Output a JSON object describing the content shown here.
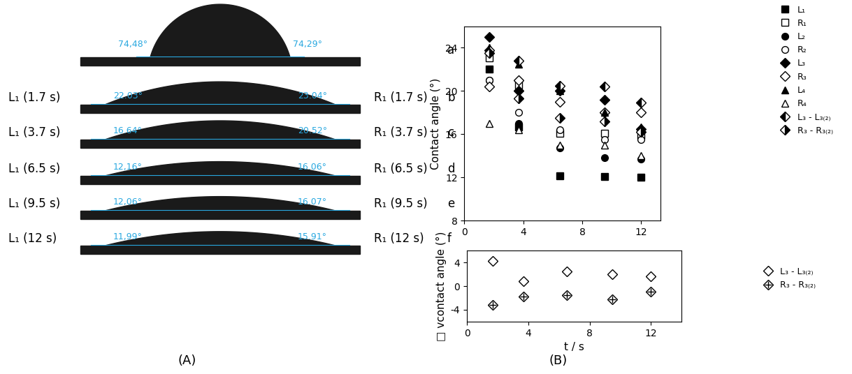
{
  "panel_labels": [
    "(A)",
    "(B)"
  ],
  "droplets": [
    {
      "row": "a",
      "left_angle": 74.48,
      "left_angle_label": "74,48°",
      "right_angle": 74.29,
      "right_angle_label": "74,29°"
    },
    {
      "row": "b",
      "left_name": "L₁ (1.7 s)",
      "right_name": "R₁ (1.7 s)",
      "left_angle": 22.03,
      "left_angle_label": "22.03°",
      "right_angle": 23.04,
      "right_angle_label": "23.04°"
    },
    {
      "row": "c",
      "left_name": "L₁ (3.7 s)",
      "right_name": "R₁ (3.7 s)",
      "left_angle": 16.64,
      "left_angle_label": "16.64°",
      "right_angle": 20.52,
      "right_angle_label": "20.52°"
    },
    {
      "row": "d",
      "left_name": "L₁ (6.5 s)",
      "right_name": "R₁ (6.5 s)",
      "left_angle": 12.16,
      "left_angle_label": "12,16°",
      "right_angle": 16.06,
      "right_angle_label": "16.06°"
    },
    {
      "row": "e",
      "left_name": "L₁ (9.5 s)",
      "right_name": "R₁ (9.5 s)",
      "left_angle": 12.06,
      "left_angle_label": "12,06°",
      "right_angle": 16.07,
      "right_angle_label": "16.07°"
    },
    {
      "row": "f",
      "left_name": "L₁ (12 s)",
      "right_name": "R₁ (12 s)",
      "left_angle": 11.99,
      "left_angle_label": "11,99°",
      "right_angle": 15.91,
      "right_angle_label": "15.91°"
    }
  ],
  "chart_data": [
    {
      "type": "scatter",
      "y_label": "Contact angle (°)",
      "x": [
        1.7,
        3.7,
        6.5,
        9.5,
        12
      ],
      "xlim": [
        0,
        13.3
      ],
      "xticks": [
        0,
        4,
        8,
        12
      ],
      "ylim": [
        8,
        26
      ],
      "yticks": [
        8,
        12,
        16,
        20,
        24
      ],
      "grid": false,
      "legend": "outside upper right",
      "series": [
        {
          "name": "L₁",
          "color": "#000000",
          "marker": "filled_square",
          "values": [
            22.03,
            16.64,
            12.16,
            12.06,
            11.99
          ]
        },
        {
          "name": "R₁",
          "color": "#000000",
          "marker": "open_square",
          "values": [
            23.04,
            20.52,
            16.06,
            16.07,
            15.91
          ]
        },
        {
          "name": "L₂",
          "color": "#000000",
          "marker": "filled_circle",
          "values": [
            21,
            17,
            14.7,
            13.8,
            13.7
          ]
        },
        {
          "name": "R₂",
          "color": "#000000",
          "marker": "open_circle",
          "values": [
            21,
            18,
            16.4,
            15.5,
            15.5
          ]
        },
        {
          "name": "L₃",
          "color": "#000000",
          "marker": "filled_diamond",
          "values": [
            25,
            20,
            20,
            19.2,
            16.5
          ]
        },
        {
          "name": "R₃",
          "color": "#000000",
          "marker": "open_diamond",
          "values": [
            20.4,
            21,
            19,
            18,
            18
          ]
        },
        {
          "name": "L₄",
          "color": "#000000",
          "marker": "filled_triangle",
          "values": [
            24,
            22.5,
            20,
            18,
            16.7
          ]
        },
        {
          "name": "R₄",
          "color": "#000000",
          "marker": "open_triangle",
          "values": [
            17,
            16.4,
            15,
            15,
            14
          ]
        },
        {
          "name": "L₃ - L₃₍₂₎",
          "color": "#000000",
          "marker": "half_left_diamond",
          "values": [
            23.8,
            22.8,
            20.5,
            20.4,
            18.9
          ]
        },
        {
          "name": "R₃ - R₃₍₂₎",
          "color": "#000000",
          "marker": "half_right_diamond",
          "values": [
            23.5,
            19.3,
            17.5,
            17.2,
            16.2
          ]
        }
      ]
    },
    {
      "type": "scatter",
      "x_label": "t / s",
      "y_label": "□ vcontact angle (°)",
      "x": [
        1.7,
        3.7,
        6.5,
        9.5,
        12
      ],
      "xlim": [
        0,
        14
      ],
      "xticks": [
        0,
        4,
        8,
        12
      ],
      "ylim": [
        -6,
        6
      ],
      "yticks": [
        -4,
        0,
        4
      ],
      "grid": false,
      "legend": "outside upper right",
      "series": [
        {
          "name": "L₃ - L₃₍₂₎",
          "color": "#000000",
          "marker": "open_diamond",
          "values": [
            4.2,
            0.8,
            2.5,
            2,
            1.6
          ]
        },
        {
          "name": "R₃ - R₃₍₂₎",
          "color": "#000000",
          "marker": "crossed_diamond",
          "values": [
            -3.2,
            -1.8,
            -1.5,
            -2.2,
            -0.9
          ]
        }
      ]
    }
  ]
}
